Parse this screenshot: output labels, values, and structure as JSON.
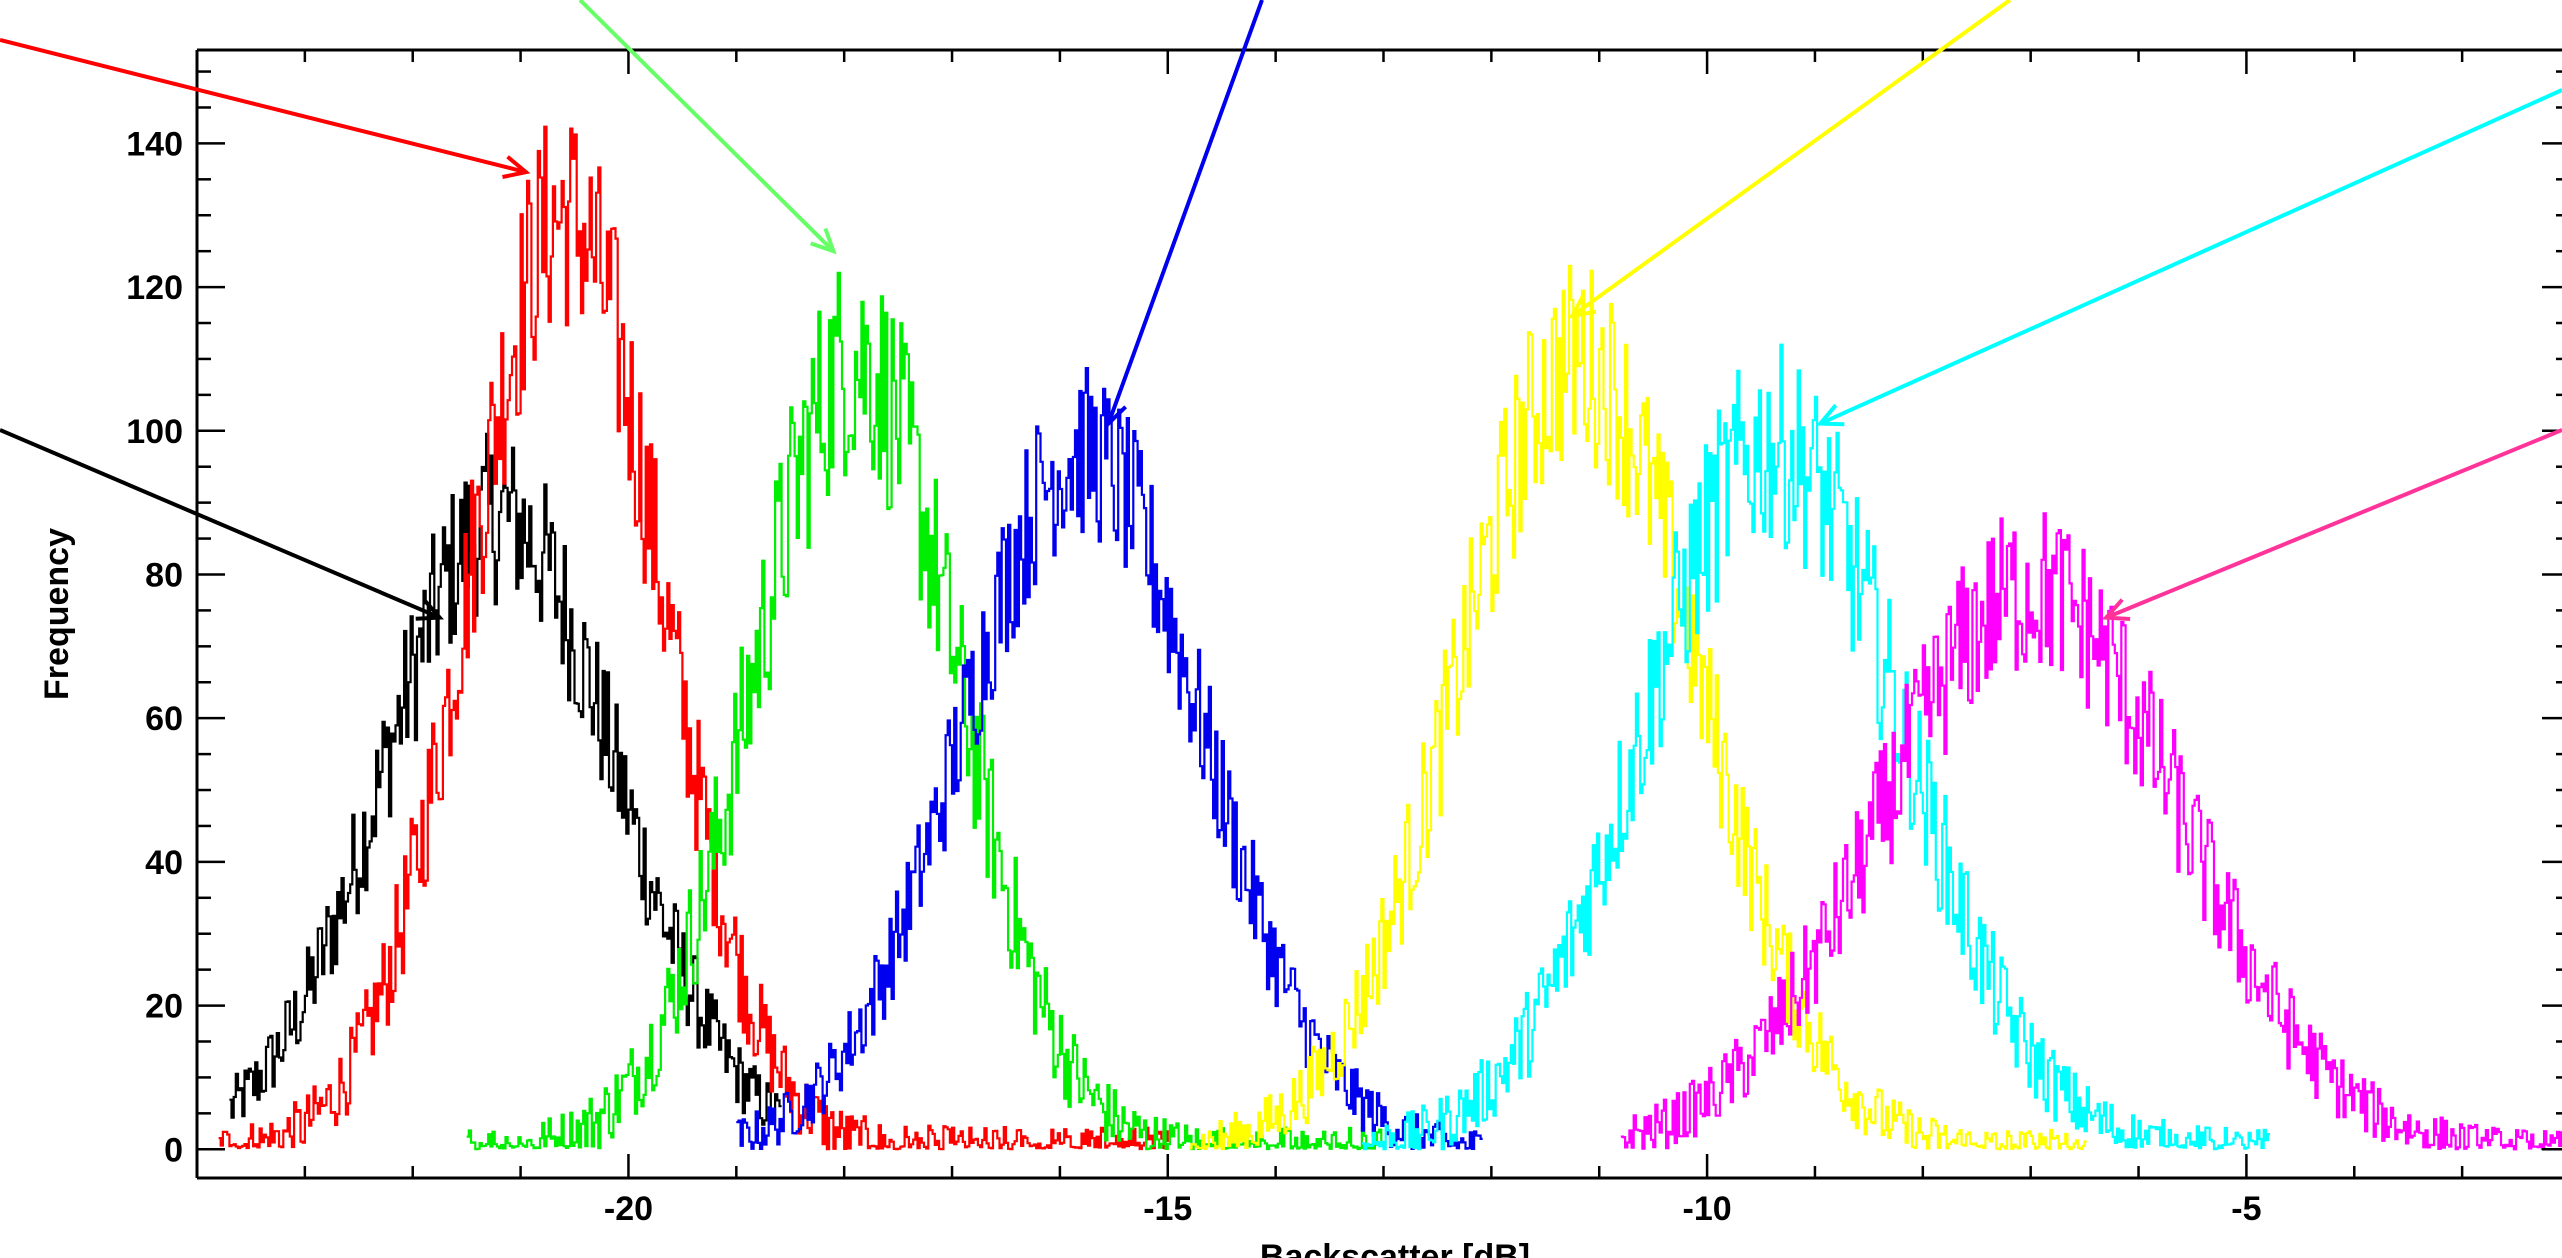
{
  "chart_data": {
    "type": "line",
    "xlabel": "Backscatter [dB]",
    "ylabel": "Frequency",
    "xlim": [
      -24,
      -2
    ],
    "ylim": [
      -4,
      153
    ],
    "x_ticks": [
      -20,
      -15,
      -10,
      -5
    ],
    "y_ticks": [
      0,
      20,
      40,
      60,
      80,
      100,
      120,
      140
    ],
    "grid": false,
    "series": [
      {
        "color": "#000000",
        "peak_x": -21.2,
        "peak_y": 88,
        "x_range": [
          -23.7,
          -18.6
        ],
        "noise": 12,
        "x": [
          -22.5,
          -21.2,
          -20.0
        ],
        "y": [
          29,
          88,
          13
        ]
      },
      {
        "color": "#ff0000",
        "peak_x": -20.6,
        "peak_y": 130,
        "x_range": [
          -23.8,
          -15.0
        ],
        "noise": 16,
        "x": [
          -21.6,
          -20.6,
          -19.5
        ],
        "y": [
          55,
          130,
          50
        ]
      },
      {
        "color": "#00ee00",
        "peak_x": -17.9,
        "peak_y": 110,
        "x_range": [
          -21.5,
          -13.0
        ],
        "noise": 16,
        "x": [
          -19.0,
          -17.9,
          -16.8
        ],
        "y": [
          48,
          110,
          52
        ]
      },
      {
        "color": "#0000ee",
        "peak_x": -15.8,
        "peak_y": 97,
        "x_range": [
          -19.0,
          -12.1
        ],
        "noise": 12,
        "x": [
          -17.1,
          -15.8,
          -14.5
        ],
        "y": [
          38,
          97,
          37
        ]
      },
      {
        "color": "#ffff00",
        "peak_x": -11.2,
        "peak_y": 110,
        "x_range": [
          -14.8,
          -6.5
        ],
        "noise": 14,
        "x": [
          -12.5,
          -11.2,
          -9.9
        ],
        "y": [
          45,
          110,
          42
        ]
      },
      {
        "color": "#00ffff",
        "peak_x": -9.4,
        "peak_y": 98,
        "x_range": [
          -13.2,
          -4.8
        ],
        "noise": 14,
        "x": [
          -10.8,
          -9.4,
          -8.0
        ],
        "y": [
          40,
          98,
          38
        ]
      },
      {
        "color": "#ff00ff",
        "peak_x": -7.0,
        "peak_y": 78,
        "x_range": [
          -10.8,
          -1.9
        ],
        "noise": 12,
        "x": [
          -8.6,
          -7.0,
          -5.4
        ],
        "y": [
          28,
          78,
          27
        ]
      }
    ],
    "arrows": [
      {
        "color": "#ff0000",
        "tip": [
          -20.95,
          136
        ]
      },
      {
        "color": "#66ff66",
        "tip": [
          -18.1,
          125
        ]
      },
      {
        "color": "#0000ee",
        "tip": [
          -15.55,
          101
        ]
      },
      {
        "color": "#ffff00",
        "tip": [
          -11.25,
          116
        ]
      },
      {
        "color": "#00ffff",
        "tip": [
          -8.95,
          101
        ]
      },
      {
        "color": "#ff3399",
        "tip": [
          -6.3,
          74
        ]
      },
      {
        "color": "#000000",
        "tip": [
          -21.75,
          74
        ]
      }
    ]
  }
}
